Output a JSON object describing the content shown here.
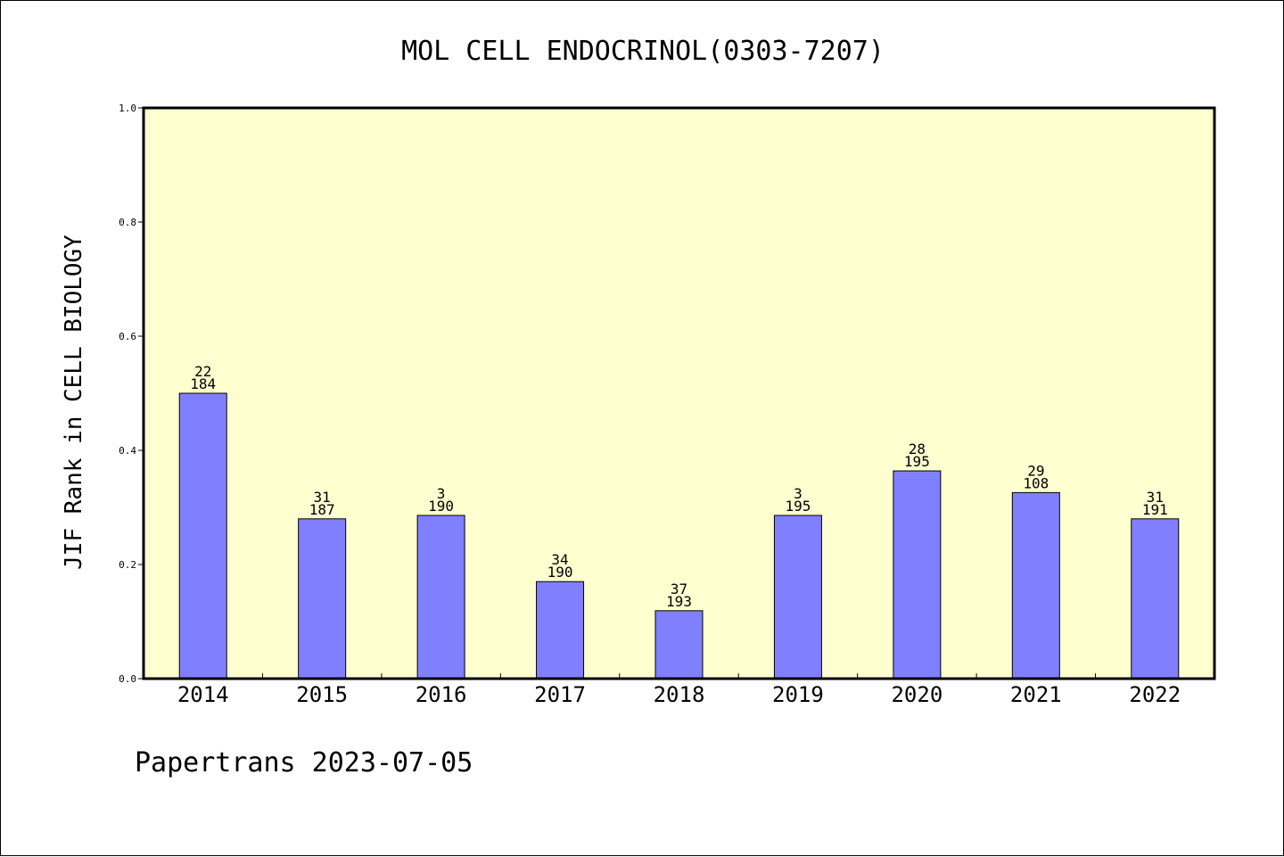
{
  "chart_data": {
    "type": "bar",
    "title": "MOL CELL ENDOCRINOL(0303-7207)",
    "ylabel": "JIF Rank in CELL BIOLOGY",
    "xlabel": "",
    "ylim": [
      0,
      1.0
    ],
    "yticks": [
      "0.0",
      "0.2",
      "0.4",
      "0.6",
      "0.8",
      "1.0"
    ],
    "categories": [
      "2014",
      "2015",
      "2016",
      "2017",
      "2018",
      "2019",
      "2020",
      "2021",
      "2022"
    ],
    "values": [
      0.5,
      0.28,
      0.286,
      0.17,
      0.119,
      0.286,
      0.364,
      0.326,
      0.28
    ],
    "labels_top": [
      "22",
      "31",
      "3",
      "34",
      "37",
      "3",
      "28",
      "29",
      "31"
    ],
    "labels_bottom": [
      "184",
      "187",
      "190",
      "190",
      "193",
      "195",
      "195",
      "108",
      "191"
    ],
    "grid": false,
    "colors": {
      "bar": "#8080ff",
      "plot_bg": "#ffffd0",
      "bar_edge": "#000000"
    }
  },
  "footer": "Papertrans 2023-07-05"
}
